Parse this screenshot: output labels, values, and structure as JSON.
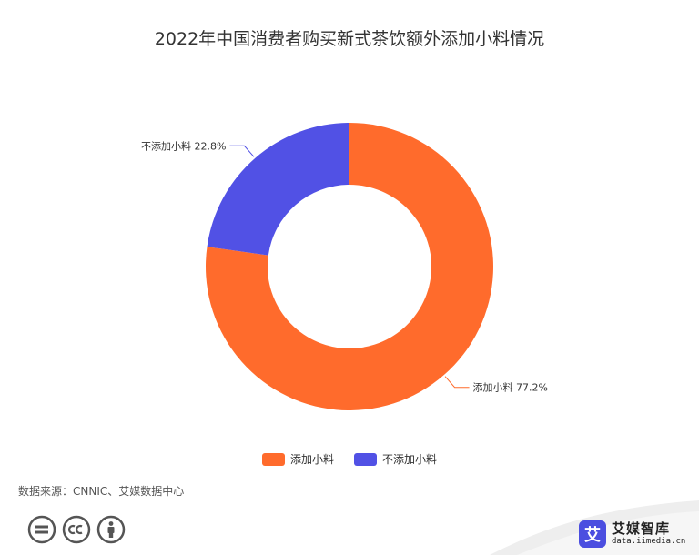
{
  "title": "2022年中国消费者购买新式茶饮额外添加小料情况",
  "source": "数据来源：CNNIC、艾媒数据中心",
  "brand": {
    "name": "艾媒智库",
    "url": "data.iimedia.cn",
    "logo_char": "艾"
  },
  "icons": [
    "equals-icon",
    "cc-icon",
    "person-icon"
  ],
  "chart_data": {
    "type": "pie",
    "donut": true,
    "categories": [
      "添加小料",
      "不添加小料"
    ],
    "values": [
      77.2,
      22.8
    ],
    "unit": "%",
    "data_labels": [
      "添加小料 77.2%",
      "不添加小料 22.8%"
    ],
    "colors": [
      "#ff6b2c",
      "#5151e5"
    ],
    "legend_position": "bottom"
  }
}
